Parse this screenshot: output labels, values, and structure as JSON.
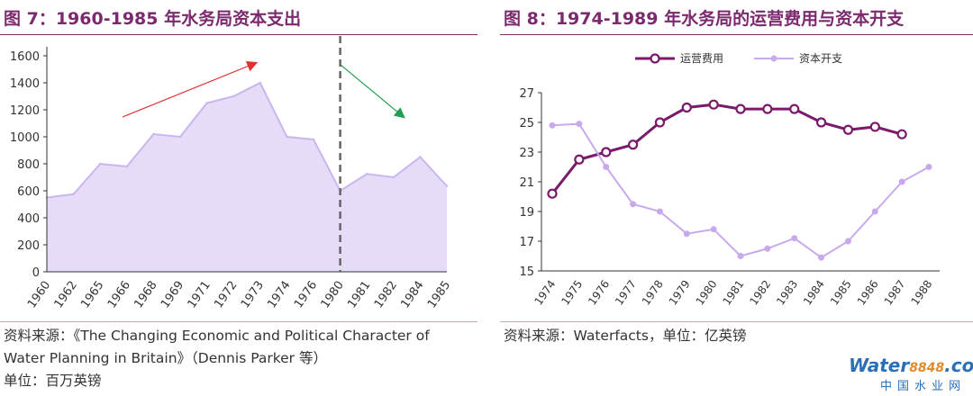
{
  "left_panel": {
    "title": "图 7：1960-1985 年水务局资本支出",
    "source_line1": "资料来源：《The Changing Economic and Political Character of",
    "source_line2": "Water Planning in Britain》（Dennis Parker  等）",
    "unit": "单位：百万英镑"
  },
  "right_panel": {
    "title": "图 8：1974-1989 年水务局的运营费用与资本开支",
    "source": "资料来源：Waterfacts，单位：亿英镑"
  },
  "watermark": {
    "brand": "Water",
    "brand_num": "8848",
    "brand_suffix": ".com",
    "sub": "中国水业网"
  },
  "colors": {
    "title": "#7b2a6e",
    "area_fill": "#e6dcf7",
    "area_stroke": "#c9b6ef",
    "series1": "#7b1a6b",
    "series2": "#c8aaec",
    "arrow_up": "#e03030",
    "arrow_down": "#1fa050",
    "divider": "#666666"
  },
  "chart_data": [
    {
      "type": "area",
      "categories": [
        "1960",
        "1962",
        "1965",
        "1966",
        "1968",
        "1969",
        "1971",
        "1972",
        "1973",
        "1974",
        "1976",
        "1980",
        "1981",
        "1982",
        "1984",
        "1985"
      ],
      "values": [
        550,
        575,
        800,
        780,
        1020,
        1000,
        1250,
        1300,
        1400,
        1000,
        980,
        600,
        725,
        700,
        850,
        635
      ],
      "ylim": [
        0,
        1600
      ],
      "yticks": [
        "0",
        "200",
        "400",
        "600",
        "800",
        "1000",
        "1200",
        "1400",
        "1600"
      ],
      "divider_at": "1980",
      "grid": false
    },
    {
      "type": "line",
      "categories": [
        "1974",
        "1975",
        "1976",
        "1977",
        "1978",
        "1979",
        "1980",
        "1981",
        "1982",
        "1983",
        "1984",
        "1985",
        "1986",
        "1987",
        "1988"
      ],
      "series": [
        {
          "name": "运营费用",
          "values": [
            20.2,
            22.5,
            23.0,
            23.5,
            25.0,
            26.0,
            26.2,
            25.9,
            25.9,
            25.9,
            25.0,
            24.5,
            24.7,
            24.2,
            null
          ]
        },
        {
          "name": "资本开支",
          "values": [
            24.8,
            24.9,
            22.0,
            19.5,
            19.0,
            17.5,
            17.8,
            16.0,
            16.5,
            17.2,
            15.9,
            17.0,
            19.0,
            21.0,
            22.0
          ]
        }
      ],
      "ylim": [
        15,
        27
      ],
      "yticks": [
        "15",
        "17",
        "19",
        "21",
        "23",
        "25",
        "27"
      ],
      "legend": "top",
      "grid": false
    }
  ]
}
